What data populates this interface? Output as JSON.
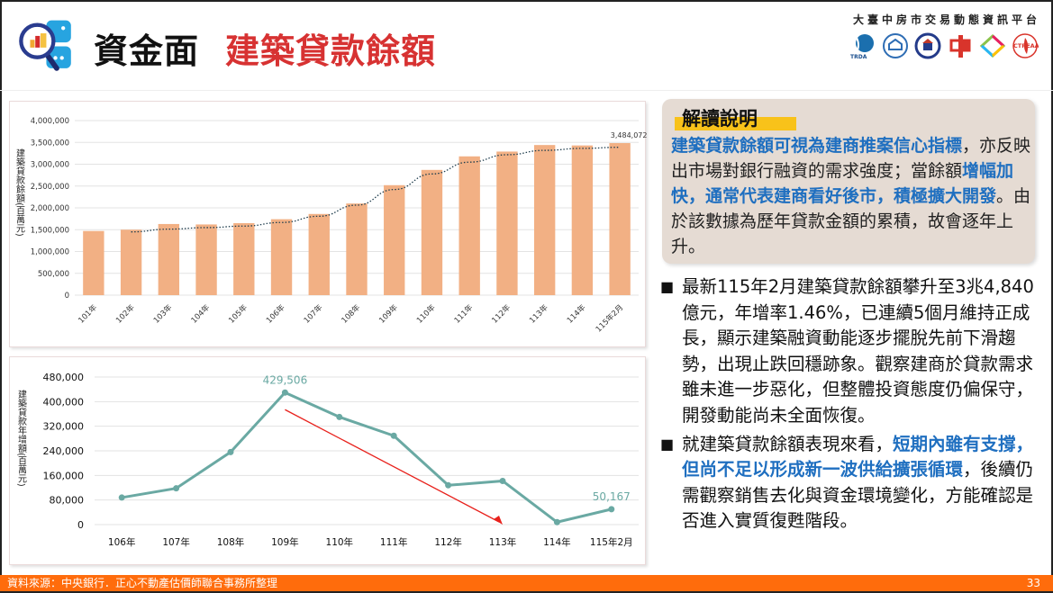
{
  "header": {
    "title_main": "資金面",
    "title_sub": "建築貸款餘額",
    "org_name": "大臺中房市交易動態資訊平台",
    "org_logos": [
      "TRDA",
      "house-emblem",
      "association-emblem",
      "中",
      "diamond-logo",
      "CTREAA"
    ]
  },
  "callout": {
    "title": "解讀說明",
    "line1_blue": "建築貸款餘額可視為建商推案信心指標",
    "line1_rest": "，亦反映出市場對銀行融資的需求強度；當餘額",
    "line2_blue": "增幅加快，通常代表建商看好後市，積極擴大開發",
    "line2_rest": "。由於該數據為歷年貸款金額的累積，故會逐年上升。"
  },
  "bullets": [
    {
      "text": "最新115年2月建築貸款餘額攀升至3兆4,840億元，年增率1.46%，已連續5個月維持正成長，顯示建築融資動能逐步擺脫先前下滑趨勢，出現止跌回穩跡象。觀察建商於貸款需求雖未進一步惡化，但整體投資態度仍偏保守，開發動能尚未全面恢復。"
    },
    {
      "pre": "就建築貸款餘額表現來看，",
      "blue": "短期內雖有支撐，但尚不足以形成新一波供給擴張循環",
      "post": "，後續仍需觀察銷售去化與資金環境變化，方能確認是否進入實質復甦階段。"
    }
  ],
  "footer": {
    "source": "資料來源：中央銀行．正心不動產估價師聯合事務所整理",
    "page": "33"
  },
  "colors": {
    "bar": "#f2b084",
    "line": "#6aa9a3",
    "arrow": "#e8211c",
    "title_red": "#d73232",
    "highlight_blue": "#1f6fc0",
    "footer": "#ff6c0c"
  },
  "chart_data": [
    {
      "type": "bar",
      "title": "",
      "ylabel": "建築貸款餘額(百萬元)",
      "xlabel": "",
      "categories": [
        "101年",
        "102年",
        "103年",
        "104年",
        "105年",
        "106年",
        "107年",
        "108年",
        "109年",
        "110年",
        "111年",
        "112年",
        "113年",
        "114年",
        "115年2月"
      ],
      "values": [
        1470000,
        1500000,
        1630000,
        1620000,
        1650000,
        1740000,
        1860000,
        2100000,
        2520000,
        2870000,
        3180000,
        3290000,
        3440000,
        3430000,
        3484072
      ],
      "data_labels": {
        "115年2月": "3,484,072"
      },
      "ylim": [
        0,
        4000000
      ],
      "yticks": [
        "0",
        "500,000",
        "1,000,000",
        "1,500,000",
        "2,000,000",
        "2,500,000",
        "3,000,000",
        "3,500,000",
        "4,000,000"
      ],
      "trendline": "dotted polynomial from 102年 to 115年2月",
      "grid": true,
      "legend": "none"
    },
    {
      "type": "line",
      "title": "",
      "ylabel": "建築貸款年增額(百萬元)",
      "xlabel": "",
      "categories": [
        "106年",
        "107年",
        "108年",
        "109年",
        "110年",
        "111年",
        "112年",
        "113年",
        "114年",
        "115年2月"
      ],
      "values": [
        88000,
        118000,
        236000,
        429506,
        350000,
        289000,
        128000,
        142000,
        8000,
        50167
      ],
      "data_labels": {
        "109年": "429,506",
        "115年2月": "50,167"
      },
      "ylim": [
        0,
        480000
      ],
      "yticks": [
        "0",
        "80,000",
        "160,000",
        "240,000",
        "320,000",
        "400,000",
        "480,000"
      ],
      "annotation": "red downward arrow from 109年 to 113年",
      "grid": true,
      "legend": "none"
    }
  ]
}
